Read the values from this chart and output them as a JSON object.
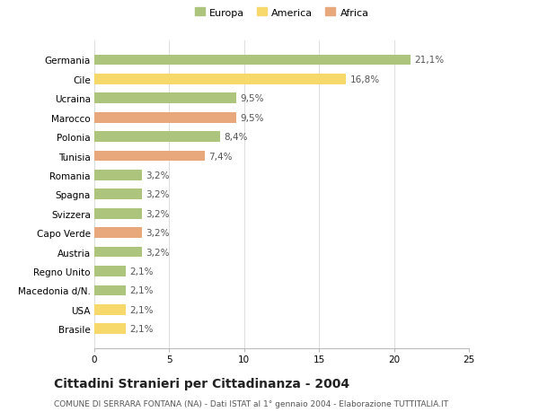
{
  "countries": [
    "Germania",
    "Cile",
    "Ucraina",
    "Marocco",
    "Polonia",
    "Tunisia",
    "Romania",
    "Spagna",
    "Svizzera",
    "Capo Verde",
    "Austria",
    "Regno Unito",
    "Macedonia d/N.",
    "USA",
    "Brasile"
  ],
  "values": [
    21.1,
    16.8,
    9.5,
    9.5,
    8.4,
    7.4,
    3.2,
    3.2,
    3.2,
    3.2,
    3.2,
    2.1,
    2.1,
    2.1,
    2.1
  ],
  "labels": [
    "21,1%",
    "16,8%",
    "9,5%",
    "9,5%",
    "8,4%",
    "7,4%",
    "3,2%",
    "3,2%",
    "3,2%",
    "3,2%",
    "3,2%",
    "2,1%",
    "2,1%",
    "2,1%",
    "2,1%"
  ],
  "continents": [
    "Europa",
    "America",
    "Europa",
    "Africa",
    "Europa",
    "Africa",
    "Europa",
    "Europa",
    "Europa",
    "Africa",
    "Europa",
    "Europa",
    "Europa",
    "America",
    "America"
  ],
  "colors": {
    "Europa": "#adc47d",
    "America": "#f7d96b",
    "Africa": "#e8a87c"
  },
  "title": "Cittadini Stranieri per Cittadinanza - 2004",
  "subtitle": "COMUNE DI SERRARA FONTANA (NA) - Dati ISTAT al 1° gennaio 2004 - Elaborazione TUTTITALIA.IT",
  "xlim": [
    0,
    25
  ],
  "xticks": [
    0,
    5,
    10,
    15,
    20,
    25
  ],
  "background_color": "#ffffff",
  "grid_color": "#dddddd",
  "bar_height": 0.55,
  "label_fontsize": 7.5,
  "ytick_fontsize": 7.5,
  "xtick_fontsize": 7.5,
  "title_fontsize": 10,
  "subtitle_fontsize": 6.5,
  "legend_fontsize": 8
}
